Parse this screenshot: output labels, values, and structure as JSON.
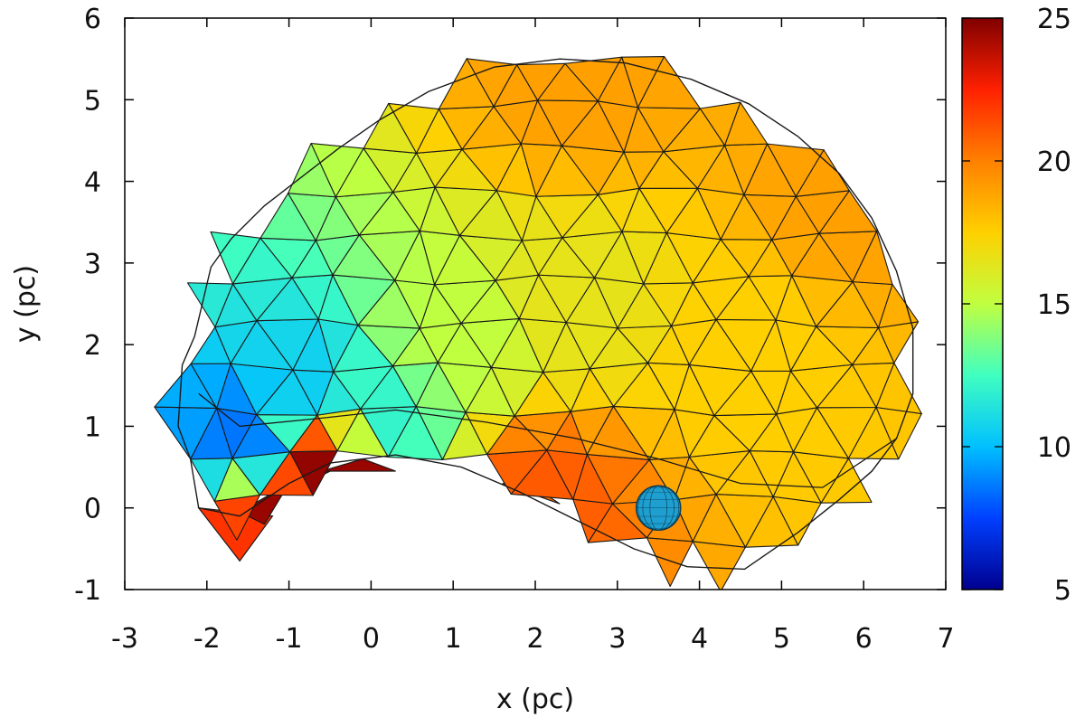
{
  "chart_data": {
    "type": "triangulated-surface",
    "title": "",
    "xlabel": "x (pc)",
    "ylabel": "y (pc)",
    "xlim": [
      -3,
      7
    ],
    "ylim": [
      -1,
      6
    ],
    "xticks": [
      -3,
      -2,
      -1,
      0,
      1,
      2,
      3,
      4,
      5,
      6,
      7
    ],
    "yticks": [
      -1,
      0,
      1,
      2,
      3,
      4,
      5,
      6
    ],
    "colorbar": {
      "min": 5,
      "max": 25,
      "ticks": [
        5,
        10,
        15,
        20,
        25
      ],
      "colormap": "jet-like",
      "stops": [
        "#00008f",
        "#0040ff",
        "#00c0ff",
        "#40ffc0",
        "#c0ff40",
        "#ffd000",
        "#ff8000",
        "#ff2000",
        "#800000"
      ]
    },
    "marker": {
      "shape": "sphere",
      "x": 3.5,
      "y": 0.0,
      "radius": 0.27,
      "color": "#1e9fd0"
    },
    "shell_outline": [
      [
        -2.35,
        1.0
      ],
      [
        -2.3,
        1.75
      ],
      [
        -2.15,
        2.1
      ],
      [
        -1.95,
        2.95
      ],
      [
        -1.7,
        3.3
      ],
      [
        -1.3,
        3.7
      ],
      [
        -0.85,
        4.05
      ],
      [
        -0.4,
        4.4
      ],
      [
        0.1,
        4.75
      ],
      [
        0.7,
        5.1
      ],
      [
        1.5,
        5.4
      ],
      [
        2.3,
        5.5
      ],
      [
        3.1,
        5.45
      ],
      [
        3.9,
        5.25
      ],
      [
        4.6,
        4.95
      ],
      [
        5.2,
        4.55
      ],
      [
        5.7,
        4.1
      ],
      [
        6.1,
        3.55
      ],
      [
        6.4,
        2.9
      ],
      [
        6.6,
        2.2
      ],
      [
        6.6,
        1.4
      ],
      [
        6.4,
        0.85
      ],
      [
        6.1,
        0.45
      ],
      [
        5.7,
        0.1
      ],
      [
        5.2,
        -0.3
      ],
      [
        4.55,
        -0.75
      ],
      [
        3.85,
        -0.72
      ],
      [
        3.2,
        -0.5
      ],
      [
        2.5,
        -0.15
      ],
      [
        1.8,
        0.2
      ],
      [
        1.1,
        0.5
      ],
      [
        0.3,
        0.65
      ],
      [
        -0.5,
        0.55
      ],
      [
        -1.0,
        0.3
      ],
      [
        -1.6,
        -0.1
      ],
      [
        -2.1,
        0.0
      ],
      [
        -2.2,
        0.6
      ]
    ],
    "inner_edge": [
      [
        -2.1,
        1.4
      ],
      [
        -1.6,
        1.0
      ],
      [
        -0.6,
        1.1
      ],
      [
        0.3,
        1.2
      ],
      [
        1.4,
        1.05
      ],
      [
        2.5,
        0.85
      ],
      [
        3.5,
        0.6
      ],
      [
        4.5,
        0.3
      ],
      [
        5.5,
        0.25
      ],
      [
        6.4,
        0.85
      ]
    ],
    "surface_value_field": {
      "description_values": [
        {
          "x": -1.6,
          "y": 0.9,
          "value": 8.5
        },
        {
          "x": -0.8,
          "y": 1.5,
          "value": 10.5
        },
        {
          "x": 0.2,
          "y": 1.1,
          "value": 12
        },
        {
          "x": 1.0,
          "y": 2.0,
          "value": 15
        },
        {
          "x": 2.5,
          "y": 2.5,
          "value": 16.5
        },
        {
          "x": 4.5,
          "y": 2.0,
          "value": 17.5
        },
        {
          "x": 5.8,
          "y": 3.8,
          "value": 19
        },
        {
          "x": 2.5,
          "y": 5.2,
          "value": 19
        },
        {
          "x": -1.6,
          "y": -0.4,
          "value": 22
        },
        {
          "x": -0.5,
          "y": 0.45,
          "value": 25
        },
        {
          "x": 2.0,
          "y": 0.1,
          "value": 21
        }
      ]
    }
  }
}
